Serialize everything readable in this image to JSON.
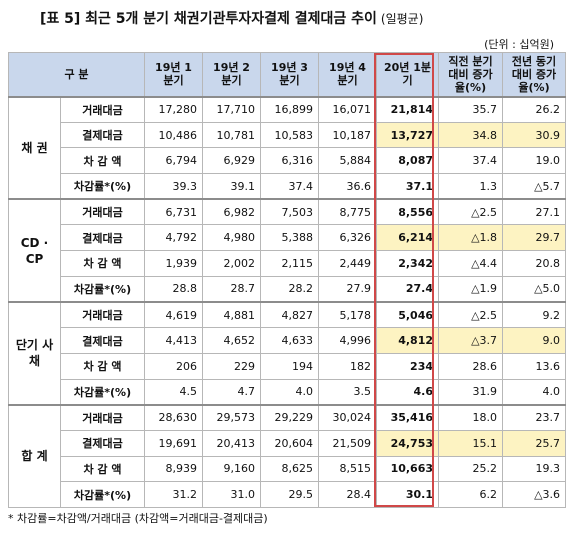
{
  "title": "[표 5] 최근 5개 분기 채권기관투자자결제 결제대금 추이",
  "subtitle": "(일평균)",
  "unit": "(단위 : 십억원)",
  "headers": [
    "구 분",
    "",
    "19년 1분기",
    "19년 2분기",
    "19년 3분기",
    "19년 4분기",
    "20년 1분기",
    "직전 분기대비 증가율(%)",
    "전년 동기대비 증가율(%)"
  ],
  "groups": [
    {
      "name": "채 권",
      "rows": [
        {
          "label": "거래대금",
          "values": [
            "17,280",
            "17,710",
            "16,899",
            "16,071",
            "21,814",
            "35.7",
            "26.2"
          ],
          "yellow": []
        },
        {
          "label": "결제대금",
          "values": [
            "10,486",
            "10,781",
            "10,583",
            "10,187",
            "13,727",
            "34.8",
            "30.9"
          ],
          "yellow": [
            4,
            5,
            6
          ]
        },
        {
          "label": "차 감 액",
          "values": [
            "6,794",
            "6,929",
            "6,316",
            "5,884",
            "8,087",
            "37.4",
            "19.0"
          ],
          "yellow": []
        },
        {
          "label": "차감률*(%)",
          "values": [
            "39.3",
            "39.1",
            "37.4",
            "36.6",
            "37.1",
            "1.3",
            "△5.7"
          ],
          "yellow": []
        }
      ]
    },
    {
      "name": "CD · CP",
      "rows": [
        {
          "label": "거래대금",
          "values": [
            "6,731",
            "6,982",
            "7,503",
            "8,775",
            "8,556",
            "△2.5",
            "27.1"
          ],
          "yellow": []
        },
        {
          "label": "결제대금",
          "values": [
            "4,792",
            "4,980",
            "5,388",
            "6,326",
            "6,214",
            "△1.8",
            "29.7"
          ],
          "yellow": [
            4,
            5,
            6
          ]
        },
        {
          "label": "차 감 액",
          "values": [
            "1,939",
            "2,002",
            "2,115",
            "2,449",
            "2,342",
            "△4.4",
            "20.8"
          ],
          "yellow": []
        },
        {
          "label": "차감률*(%)",
          "values": [
            "28.8",
            "28.7",
            "28.2",
            "27.9",
            "27.4",
            "△1.9",
            "△5.0"
          ],
          "yellow": []
        }
      ]
    },
    {
      "name": "단기 사채",
      "rows": [
        {
          "label": "거래대금",
          "values": [
            "4,619",
            "4,881",
            "4,827",
            "5,178",
            "5,046",
            "△2.5",
            "9.2"
          ],
          "yellow": []
        },
        {
          "label": "결제대금",
          "values": [
            "4,413",
            "4,652",
            "4,633",
            "4,996",
            "4,812",
            "△3.7",
            "9.0"
          ],
          "yellow": [
            4,
            5,
            6
          ]
        },
        {
          "label": "차 감 액",
          "values": [
            "206",
            "229",
            "194",
            "182",
            "234",
            "28.6",
            "13.6"
          ],
          "yellow": []
        },
        {
          "label": "차감률*(%)",
          "values": [
            "4.5",
            "4.7",
            "4.0",
            "3.5",
            "4.6",
            "31.9",
            "4.0"
          ],
          "yellow": []
        }
      ]
    },
    {
      "name": "합 계",
      "rows": [
        {
          "label": "거래대금",
          "values": [
            "28,630",
            "29,573",
            "29,229",
            "30,024",
            "35,416",
            "18.0",
            "23.7"
          ],
          "yellow": []
        },
        {
          "label": "결제대금",
          "values": [
            "19,691",
            "20,413",
            "20,604",
            "21,509",
            "24,753",
            "15.1",
            "25.7"
          ],
          "yellow": [
            4,
            5,
            6
          ]
        },
        {
          "label": "차 감 액",
          "values": [
            "8,939",
            "9,160",
            "8,625",
            "8,515",
            "10,663",
            "25.2",
            "19.3"
          ],
          "yellow": []
        },
        {
          "label": "차감률*(%)",
          "values": [
            "31.2",
            "31.0",
            "29.5",
            "28.4",
            "30.1",
            "6.2",
            "△3.6"
          ],
          "yellow": []
        }
      ]
    }
  ],
  "footnote": "* 차감률=차감액/거래대금 (차감액=거래대금-결제대금)",
  "colors": {
    "header_bg": "#c9d7ec",
    "highlight_bg": "#fdf3c2",
    "box_border": "#d04848"
  }
}
